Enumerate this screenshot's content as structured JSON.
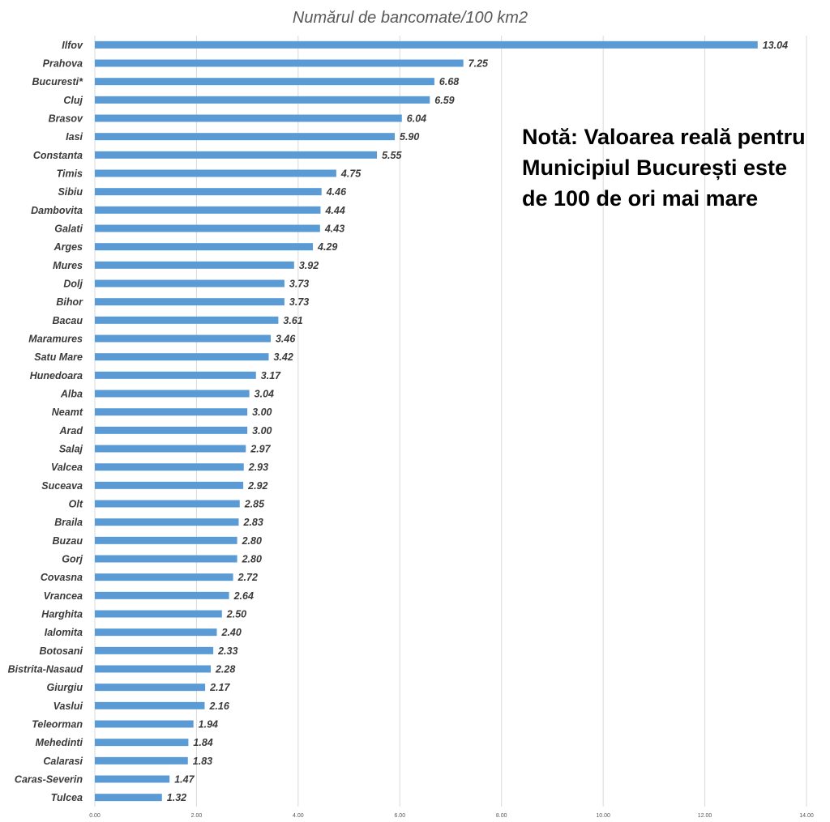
{
  "chart_data": {
    "type": "bar",
    "orientation": "horizontal",
    "title": "Numărul de bancomate/100 km2",
    "xlabel": "",
    "ylabel": "",
    "xlim": [
      0,
      14
    ],
    "x_ticks": [
      "0.00",
      "2.00",
      "4.00",
      "6.00",
      "8.00",
      "10.00",
      "12.00",
      "14.00"
    ],
    "grid": "vertical",
    "legend": "none",
    "bar_color": "#5b9bd5",
    "categories": [
      "Ilfov",
      "Prahova",
      "Bucuresti*",
      "Cluj",
      "Brasov",
      "Iasi",
      "Constanta",
      "Timis",
      "Sibiu",
      "Dambovita",
      "Galati",
      "Arges",
      "Mures",
      "Dolj",
      "Bihor",
      "Bacau",
      "Maramures",
      "Satu Mare",
      "Hunedoara",
      "Alba",
      "Neamt",
      "Arad",
      "Salaj",
      "Valcea",
      "Suceava",
      "Olt",
      "Braila",
      "Buzau",
      "Gorj",
      "Covasna",
      "Vrancea",
      "Harghita",
      "Ialomita",
      "Botosani",
      "Bistrita-Nasaud",
      "Giurgiu",
      "Vaslui",
      "Teleorman",
      "Mehedinti",
      "Calarasi",
      "Caras-Severin",
      "Tulcea"
    ],
    "values": [
      13.04,
      7.25,
      6.68,
      6.59,
      6.04,
      5.9,
      5.55,
      4.75,
      4.46,
      4.44,
      4.43,
      4.29,
      3.92,
      3.73,
      3.73,
      3.61,
      3.46,
      3.42,
      3.17,
      3.04,
      3.0,
      3.0,
      2.97,
      2.93,
      2.92,
      2.85,
      2.83,
      2.8,
      2.8,
      2.72,
      2.64,
      2.5,
      2.4,
      2.33,
      2.28,
      2.17,
      2.16,
      1.94,
      1.84,
      1.83,
      1.47,
      1.32
    ],
    "value_labels": [
      "13.04",
      "7.25",
      "6.68",
      "6.59",
      "6.04",
      "5.90",
      "5.55",
      "4.75",
      "4.46",
      "4.44",
      "4.43",
      "4.29",
      "3.92",
      "3.73",
      "3.73",
      "3.61",
      "3.46",
      "3.42",
      "3.17",
      "3.04",
      "3.00",
      "3.00",
      "2.97",
      "2.93",
      "2.92",
      "2.85",
      "2.83",
      "2.80",
      "2.80",
      "2.72",
      "2.64",
      "2.50",
      "2.40",
      "2.33",
      "2.28",
      "2.17",
      "2.16",
      "1.94",
      "1.84",
      "1.83",
      "1.47",
      "1.32"
    ],
    "annotation": "Notă: Valoarea reală pentru Municipiul București este de 100 de ori mai mare"
  }
}
